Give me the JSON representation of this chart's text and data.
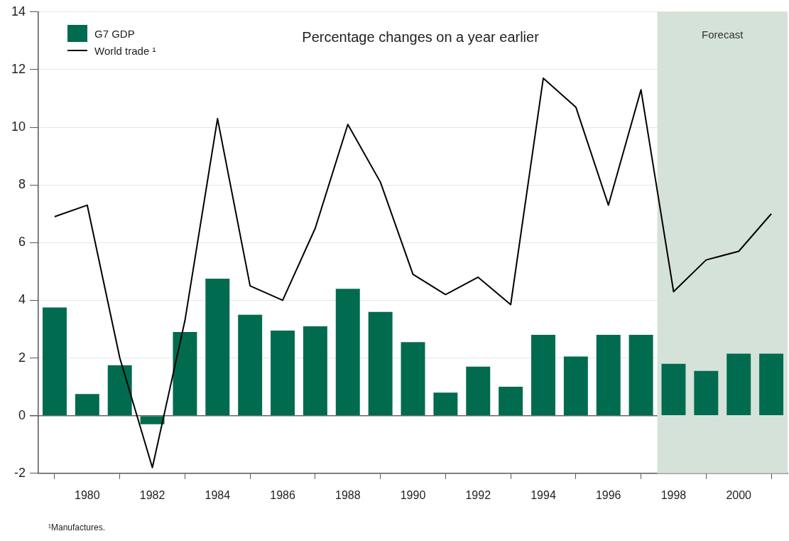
{
  "chart_data": {
    "type": "bar",
    "title": "Percentage changes on a year earlier",
    "x": [
      1979,
      1980,
      1981,
      1982,
      1983,
      1984,
      1985,
      1986,
      1987,
      1988,
      1989,
      1990,
      1991,
      1992,
      1993,
      1994,
      1995,
      1996,
      1997,
      1998,
      1999,
      2000,
      2001
    ],
    "xlim": [
      1978.5,
      2001.5
    ],
    "xticks": [
      1980,
      1982,
      1984,
      1986,
      1988,
      1990,
      1992,
      1994,
      1996,
      1998,
      2000
    ],
    "ylim": [
      -2,
      14
    ],
    "yticks": [
      -2,
      0,
      2,
      4,
      6,
      8,
      10,
      12,
      14
    ],
    "series": [
      {
        "name": "G7 GDP",
        "color": "#006b4f",
        "values": [
          3.75,
          0.75,
          1.75,
          -0.3,
          2.9,
          4.75,
          3.5,
          2.95,
          3.1,
          4.4,
          3.6,
          2.55,
          0.8,
          1.7,
          1.0,
          2.8,
          2.05,
          2.8,
          2.8,
          1.8,
          1.55,
          2.15,
          2.15
        ]
      },
      {
        "name": "World trade ¹",
        "type": "line",
        "color": "#000000",
        "values": [
          6.9,
          7.3,
          2.0,
          -1.8,
          3.3,
          10.3,
          4.5,
          4.0,
          6.5,
          10.1,
          8.1,
          4.9,
          4.2,
          4.8,
          3.85,
          11.7,
          10.7,
          7.3,
          11.3,
          4.3,
          5.4,
          5.7,
          7.0
        ]
      }
    ],
    "bands": [
      {
        "axis": "x",
        "from": 1997.5,
        "to": 2001.5,
        "label": "Forecast",
        "color": "#d5e2d9"
      }
    ],
    "annotations": [
      "¹Manufactures."
    ],
    "grid": "y",
    "legend": "top left",
    "marker": "none",
    "line_style": "solid"
  }
}
